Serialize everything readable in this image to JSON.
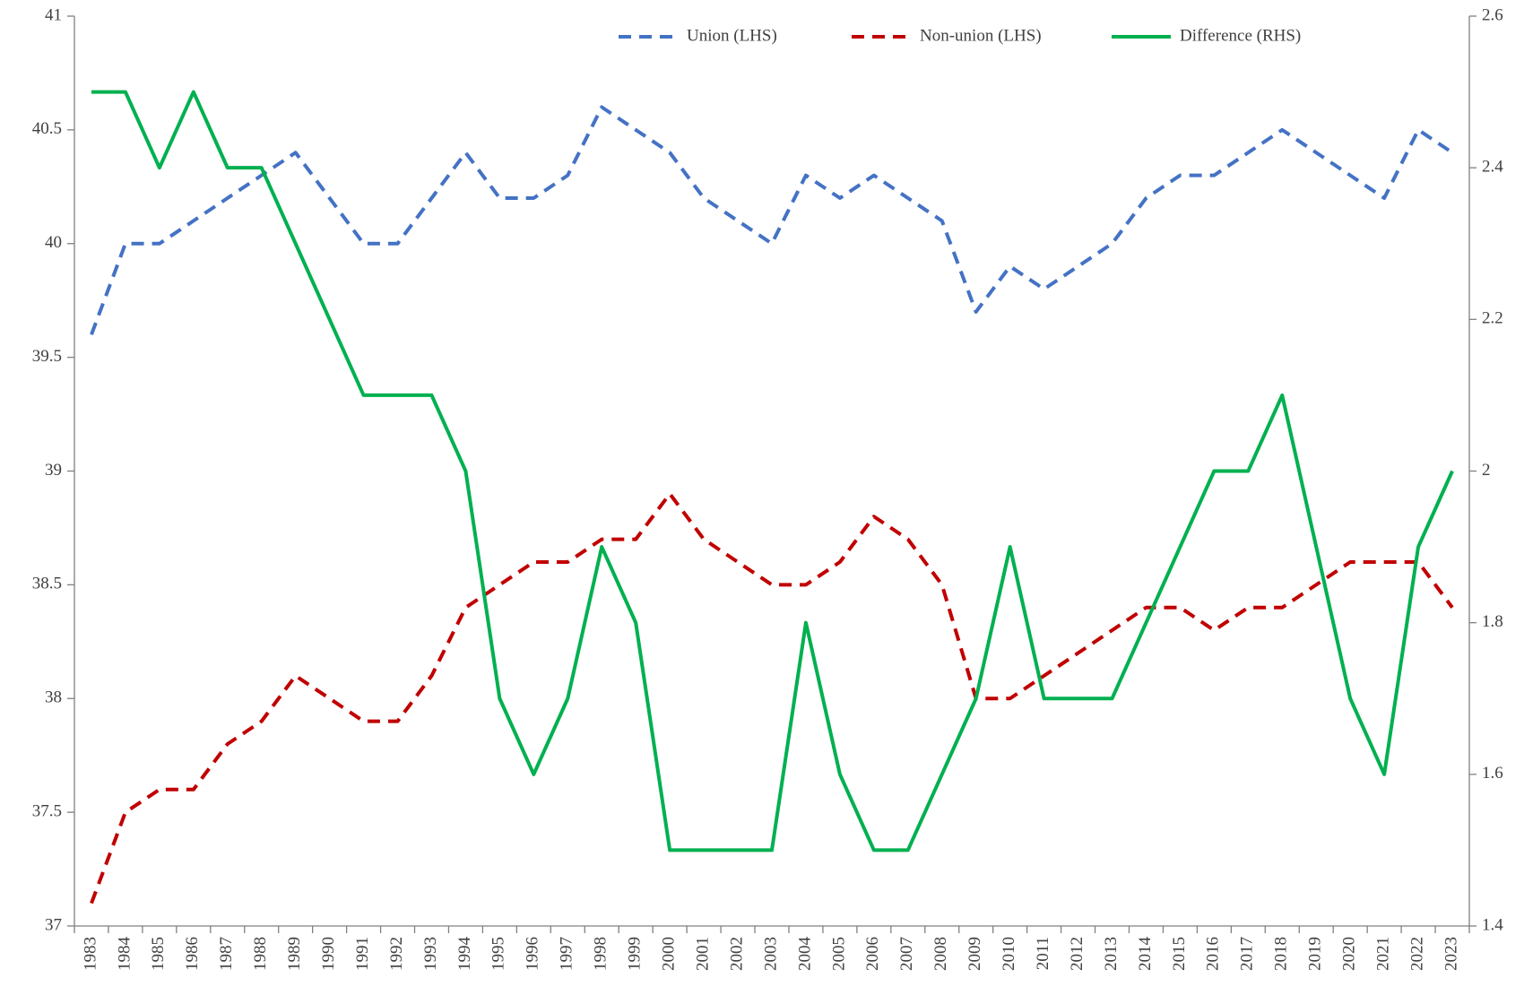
{
  "chart_data": {
    "type": "line",
    "categories": [
      "1983",
      "1984",
      "1985",
      "1986",
      "1987",
      "1988",
      "1989",
      "1990",
      "1991",
      "1992",
      "1993",
      "1994",
      "1995",
      "1996",
      "1997",
      "1998",
      "1999",
      "2000",
      "2001",
      "2002",
      "2003",
      "2004",
      "2005",
      "2006",
      "2007",
      "2008",
      "2009",
      "2010",
      "2011",
      "2012",
      "2013",
      "2014",
      "2015",
      "2016",
      "2017",
      "2018",
      "2019",
      "2020",
      "2021",
      "2022",
      "2023"
    ],
    "series": [
      {
        "name": "Union (LHS)",
        "color": "#4472c4",
        "style": "dashed",
        "axis": "y",
        "values": [
          39.6,
          40.0,
          40.0,
          40.1,
          40.2,
          40.3,
          40.4,
          40.2,
          40.0,
          40.0,
          40.2,
          40.4,
          40.2,
          40.2,
          40.3,
          40.6,
          40.5,
          40.4,
          40.2,
          40.1,
          40.0,
          40.3,
          40.2,
          40.3,
          40.2,
          40.1,
          39.7,
          39.9,
          39.8,
          39.9,
          40.0,
          40.2,
          40.3,
          40.3,
          40.4,
          40.5,
          40.4,
          40.3,
          40.2,
          40.5,
          40.4
        ]
      },
      {
        "name": "Non-union (LHS)",
        "color": "#c00000",
        "style": "dashed",
        "axis": "y",
        "values": [
          37.1,
          37.5,
          37.6,
          37.6,
          37.8,
          37.9,
          38.1,
          38.0,
          37.9,
          37.9,
          38.1,
          38.4,
          38.5,
          38.6,
          38.6,
          38.7,
          38.7,
          38.9,
          38.7,
          38.6,
          38.5,
          38.5,
          38.6,
          38.8,
          38.7,
          38.5,
          38.0,
          38.0,
          38.1,
          38.2,
          38.3,
          38.4,
          38.4,
          38.3,
          38.4,
          38.4,
          38.5,
          38.6,
          38.6,
          38.6,
          38.4
        ]
      },
      {
        "name": "Difference (RHS)",
        "color": "#00b050",
        "style": "solid",
        "axis": "y2",
        "values": [
          2.5,
          2.5,
          2.4,
          2.5,
          2.4,
          2.4,
          2.3,
          2.2,
          2.1,
          2.1,
          2.1,
          2.0,
          1.7,
          1.6,
          1.7,
          1.9,
          1.8,
          1.5,
          1.5,
          1.5,
          1.5,
          1.8,
          1.6,
          1.5,
          1.5,
          1.6,
          1.7,
          1.9,
          1.7,
          1.7,
          1.7,
          1.8,
          1.9,
          2.0,
          2.0,
          2.1,
          1.9,
          1.7,
          1.6,
          1.9,
          2.0
        ]
      }
    ],
    "ylim": [
      37,
      41
    ],
    "yticks": [
      37,
      37.5,
      38,
      38.5,
      39,
      39.5,
      40,
      40.5,
      41
    ],
    "y2lim": [
      1.4,
      2.6
    ],
    "y2ticks": [
      1.4,
      1.6,
      1.8,
      2,
      2.2,
      2.4,
      2.6
    ],
    "grid": false,
    "legend": "top"
  }
}
